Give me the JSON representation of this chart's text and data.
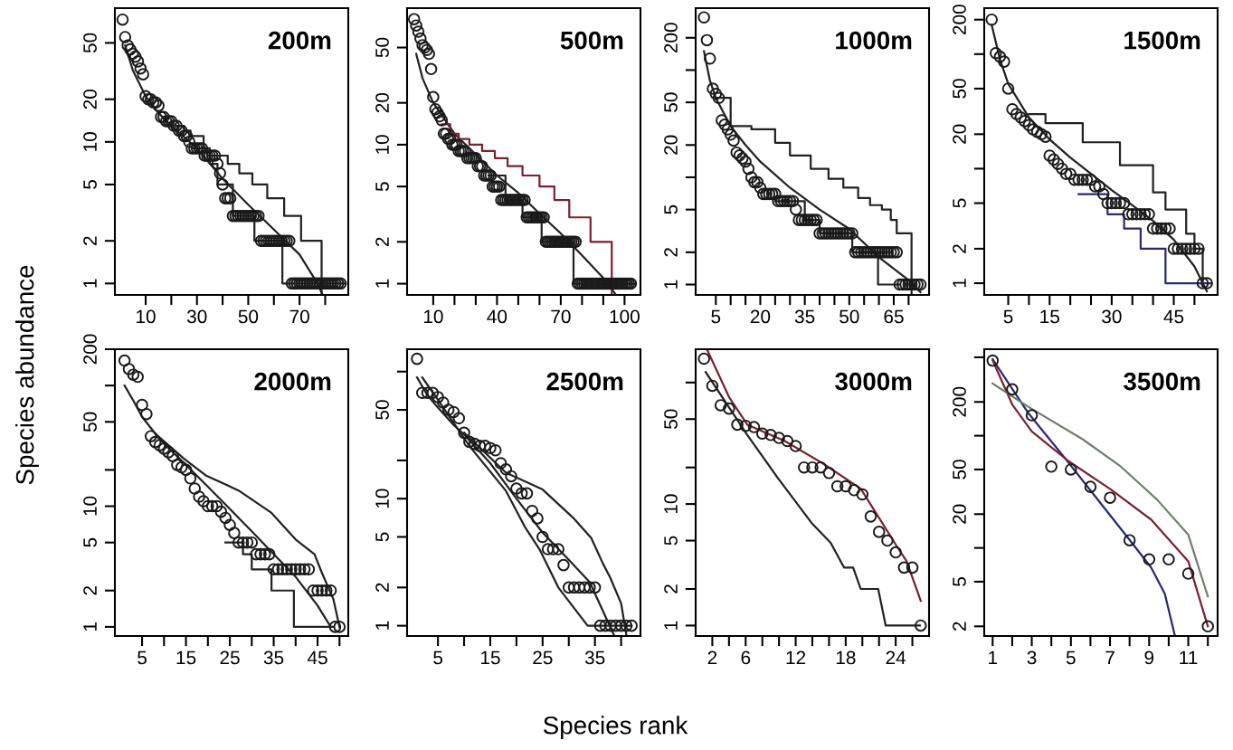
{
  "chart_data": [
    {
      "type": "scatter",
      "title": "200m",
      "ylabel": "Species abundance",
      "log": true,
      "xlim": [
        -2,
        89
      ],
      "ylim": [
        0.83,
        88
      ],
      "xticks": [
        10,
        {
          "value": 20,
          "label": null
        },
        30,
        {
          "value": 40,
          "label": null
        },
        50,
        {
          "value": 60,
          "label": null
        },
        70,
        {
          "value": 80,
          "label": null
        }
      ],
      "yticks": [
        1,
        2,
        5,
        10,
        20,
        50
      ],
      "x": [
        1,
        2,
        3,
        4,
        5,
        6,
        7,
        8,
        9,
        10,
        11,
        12,
        13,
        14,
        15,
        16,
        17,
        18,
        19,
        20,
        21,
        22,
        23,
        24,
        25,
        26,
        27,
        28,
        29,
        30,
        31,
        32,
        33,
        34,
        35,
        36,
        37,
        38,
        39,
        40,
        41,
        42,
        43,
        44,
        45,
        46,
        47,
        48,
        49,
        50,
        51,
        52,
        53,
        54,
        55,
        56,
        57,
        58,
        59,
        60,
        61,
        62,
        63,
        64,
        65,
        66,
        67,
        68,
        69,
        70,
        71,
        72,
        73,
        74,
        75,
        76,
        77,
        78,
        79,
        80,
        81,
        82,
        83,
        84,
        85,
        86
      ],
      "series": [
        {
          "marker": "circle",
          "color": "#1a1a1a",
          "values": [
            73,
            55,
            48,
            45,
            42,
            40,
            37,
            33,
            30,
            21,
            20,
            20,
            19,
            19,
            18,
            15,
            15,
            14,
            14,
            14,
            13,
            13,
            12,
            12,
            11,
            11,
            10,
            9,
            9,
            9,
            9,
            9,
            8,
            8,
            8,
            8,
            8,
            7,
            6,
            5,
            4,
            4,
            4,
            3,
            3,
            3,
            3,
            3,
            3,
            3,
            3,
            3,
            3,
            3,
            2,
            2,
            2,
            2,
            2,
            2,
            2,
            2,
            2,
            2,
            2,
            2,
            1,
            1,
            1,
            1,
            1,
            1,
            1,
            1,
            1,
            1,
            1,
            1,
            1,
            1,
            1,
            1,
            1,
            1,
            1,
            1
          ]
        },
        {
          "type": "line",
          "color": "#222222",
          "x": [
            2,
            5,
            10,
            15,
            20,
            30,
            40,
            50,
            60,
            70,
            77,
            79
          ],
          "values": [
            48,
            32,
            21,
            16,
            13,
            9,
            5.5,
            3.6,
            2.4,
            1.6,
            1.0,
            0.83
          ]
        },
        {
          "type": "step",
          "color": "#222222",
          "x": [
            22,
            25,
            27.5,
            32.6,
            34,
            42,
            46.5,
            51.6,
            57.4,
            64,
            70.6,
            78.6
          ],
          "values": [
            13,
            12,
            11,
            9,
            8,
            7,
            6,
            5,
            4,
            3,
            2,
            0.83
          ]
        },
        {
          "type": "step",
          "color": "#222222",
          "x": [
            28,
            35,
            38,
            44,
            52.4,
            63.3,
            88
          ],
          "values": [
            9,
            7,
            5,
            3,
            2,
            1,
            1
          ]
        }
      ]
    },
    {
      "type": "scatter",
      "title": "500m",
      "log": true,
      "xlim": [
        -2.3,
        107.5
      ],
      "ylim": [
        0.83,
        96
      ],
      "xticks": [
        10,
        {
          "value": 20,
          "label": null
        },
        {
          "value": 30,
          "label": null
        },
        40,
        {
          "value": 50,
          "label": null
        },
        {
          "value": 60,
          "label": null
        },
        70,
        {
          "value": 80,
          "label": null
        },
        {
          "value": 90,
          "label": null
        },
        100
      ],
      "yticks": [
        1,
        2,
        5,
        10,
        20,
        50
      ],
      "x": [
        1,
        2,
        3,
        4,
        5,
        6,
        7,
        8,
        9,
        10,
        11,
        12,
        13,
        14,
        15,
        16,
        17,
        18,
        19,
        20,
        21,
        22,
        23,
        24,
        25,
        26,
        27,
        28,
        29,
        30,
        31,
        32,
        33,
        34,
        35,
        36,
        37,
        38,
        39,
        40,
        41,
        42,
        43,
        44,
        45,
        46,
        47,
        48,
        49,
        50,
        51,
        52,
        53,
        54,
        55,
        56,
        57,
        58,
        59,
        60,
        61,
        62,
        63,
        64,
        65,
        66,
        67,
        68,
        69,
        70,
        71,
        72,
        73,
        74,
        75,
        76,
        77,
        78,
        79,
        80,
        81,
        82,
        83,
        84,
        85,
        86,
        87,
        88,
        89,
        90,
        91,
        92,
        93,
        94,
        95,
        96,
        97,
        98,
        99,
        100,
        101,
        102,
        103
      ],
      "series": [
        {
          "marker": "circle",
          "color": "#1a1a1a",
          "values": [
            80,
            72,
            65,
            58,
            52,
            50,
            48,
            45,
            35,
            22,
            18,
            17,
            16,
            15,
            12,
            12,
            11,
            11,
            10,
            10,
            10,
            9,
            9,
            9,
            9,
            8,
            8,
            8,
            8,
            8,
            7,
            7,
            7,
            6,
            6,
            6,
            6,
            5,
            5,
            5,
            5,
            4,
            4,
            4,
            4,
            4,
            4,
            4,
            4,
            4,
            4,
            4,
            4,
            3,
            3,
            3,
            3,
            3,
            3,
            3,
            3,
            3,
            2,
            2,
            2,
            2,
            2,
            2,
            2,
            2,
            2,
            2,
            2,
            2,
            2,
            2,
            2,
            1,
            1,
            1,
            1,
            1,
            1,
            1,
            1,
            1,
            1,
            1,
            1,
            1,
            1,
            1,
            1,
            1,
            1,
            1,
            1,
            1,
            1,
            1,
            1,
            1,
            1
          ]
        },
        {
          "type": "line",
          "color": "#222222",
          "x": [
            2,
            5,
            10,
            20,
            30,
            40,
            50,
            60,
            70,
            80,
            90,
            96
          ],
          "values": [
            45,
            30,
            20,
            12,
            8.5,
            6,
            4.5,
            3.2,
            2.3,
            1.6,
            1.1,
            0.83
          ]
        },
        {
          "type": "step",
          "color": "#7a2230",
          "x": [
            14,
            18,
            22,
            27,
            33,
            39,
            45,
            52,
            60,
            67,
            74,
            84,
            94
          ],
          "values": [
            14,
            12,
            11,
            10,
            9,
            8,
            7,
            6,
            5,
            4,
            3,
            2,
            0.83
          ]
        },
        {
          "type": "step",
          "color": "#222222",
          "x": [
            36,
            44,
            52,
            61,
            76,
            105
          ],
          "values": [
            6,
            4,
            3,
            2,
            1,
            1
          ]
        }
      ]
    },
    {
      "type": "scatter",
      "title": "1000m",
      "log": true,
      "xlim": [
        -1.8,
        76.9
      ],
      "ylim": [
        0.8,
        378
      ],
      "xticks": [
        5,
        {
          "value": 10,
          "label": null
        },
        {
          "value": 15,
          "label": null
        },
        20,
        {
          "value": 25,
          "label": null
        },
        {
          "value": 30,
          "label": null
        },
        35,
        {
          "value": 40,
          "label": null
        },
        {
          "value": 45,
          "label": null
        },
        50,
        {
          "value": 55,
          "label": null
        },
        {
          "value": 60,
          "label": null
        },
        65,
        {
          "value": 70,
          "label": null
        }
      ],
      "yticks": [
        1,
        2,
        5,
        {
          "value": 10,
          "label": null
        },
        20,
        50,
        {
          "value": 100,
          "label": null
        },
        200
      ],
      "x": [
        1,
        2,
        3,
        4,
        5,
        6,
        7,
        8,
        9,
        10,
        11,
        12,
        13,
        14,
        15,
        16,
        17,
        18,
        19,
        20,
        21,
        22,
        23,
        24,
        25,
        26,
        27,
        28,
        29,
        30,
        31,
        32,
        33,
        34,
        35,
        36,
        37,
        38,
        39,
        40,
        41,
        42,
        43,
        44,
        45,
        46,
        47,
        48,
        49,
        50,
        51,
        52,
        53,
        54,
        55,
        56,
        57,
        58,
        59,
        60,
        61,
        62,
        63,
        64,
        65,
        66,
        67,
        68,
        69,
        70,
        71,
        72,
        73,
        74
      ],
      "series": [
        {
          "marker": "circle",
          "color": "#1a1a1a",
          "values": [
            310,
            190,
            128,
            67,
            60,
            55,
            34,
            31,
            28,
            25,
            22,
            17,
            16,
            15,
            14,
            12,
            10,
            9,
            9,
            8,
            7,
            7,
            7,
            7,
            7,
            6,
            6,
            6,
            6,
            6,
            6,
            5,
            4,
            4,
            4,
            4,
            4,
            4,
            4,
            3,
            3,
            3,
            3,
            3,
            3,
            3,
            3,
            3,
            3,
            3,
            3,
            2,
            2,
            2,
            2,
            2,
            2,
            2,
            2,
            2,
            2,
            2,
            2,
            2,
            2,
            2,
            1,
            1,
            1,
            1,
            1,
            1,
            1,
            1
          ]
        },
        {
          "type": "line",
          "color": "#222222",
          "x": [
            1,
            3,
            5,
            10,
            15,
            20,
            30,
            40,
            50,
            60,
            70,
            74
          ],
          "values": [
            150,
            80,
            55,
            30,
            20,
            14,
            8,
            5,
            3.3,
            1.8,
            1.1,
            0.85
          ]
        },
        {
          "type": "step",
          "color": "#222222",
          "x": [
            5,
            10,
            17,
            25,
            30,
            37,
            43,
            48,
            53,
            57,
            61,
            64,
            66,
            71
          ],
          "values": [
            55,
            30,
            28,
            21,
            16,
            12,
            9.7,
            8,
            6.4,
            5.5,
            5,
            4,
            3,
            0.8
          ]
        },
        {
          "type": "step",
          "color": "#222222",
          "x": [
            25,
            35,
            40,
            51,
            59.7,
            67
          ],
          "values": [
            6,
            4,
            3,
            2,
            1,
            1
          ]
        }
      ]
    },
    {
      "type": "scatter",
      "title": "1500m",
      "log": true,
      "xlim": [
        -0.8,
        55.6
      ],
      "ylim": [
        0.79,
        252
      ],
      "xticks": [
        5,
        {
          "value": 10,
          "label": null
        },
        15,
        {
          "value": 20,
          "label": null
        },
        {
          "value": 25,
          "label": null
        },
        30,
        {
          "value": 35,
          "label": null
        },
        {
          "value": 40,
          "label": null
        },
        45,
        {
          "value": 50,
          "label": null
        }
      ],
      "yticks": [
        1,
        2,
        5,
        {
          "value": 10,
          "label": null
        },
        20,
        50,
        {
          "value": 100,
          "label": null
        },
        200
      ],
      "x": [
        1,
        2,
        3,
        4,
        5,
        6,
        7,
        8,
        9,
        10,
        11,
        12,
        13,
        14,
        15,
        16,
        17,
        18,
        19,
        20,
        21,
        22,
        23,
        24,
        25,
        26,
        27,
        28,
        29,
        30,
        31,
        32,
        33,
        34,
        35,
        36,
        37,
        38,
        39,
        40,
        41,
        42,
        43,
        44,
        45,
        46,
        47,
        48,
        49,
        50,
        51,
        52,
        53
      ],
      "series": [
        {
          "marker": "circle",
          "color": "#1a1a1a",
          "values": [
            200,
            102,
            95,
            86,
            50,
            33,
            30,
            28,
            26,
            24,
            22,
            21,
            20,
            19,
            13,
            12,
            11,
            10,
            9,
            9,
            8,
            8,
            8,
            8,
            8,
            7,
            7,
            6,
            5,
            5,
            5,
            5,
            5,
            4,
            4,
            4,
            4,
            4,
            4,
            3,
            3,
            3,
            3,
            3,
            2,
            2,
            2,
            2,
            2,
            2,
            2,
            1,
            1
          ]
        },
        {
          "type": "line",
          "color": "#222222",
          "x": [
            1,
            3,
            5,
            10,
            15,
            20,
            25,
            30,
            35,
            40,
            45,
            50,
            53
          ],
          "values": [
            180,
            90,
            55,
            28,
            18,
            12.5,
            9,
            6.5,
            4.8,
            3.5,
            2.4,
            1.4,
            0.85
          ]
        },
        {
          "type": "step",
          "color": "#222222",
          "x": [
            10,
            14,
            23,
            32,
            40,
            43,
            48,
            50,
            52
          ],
          "values": [
            30,
            25,
            17,
            10.7,
            6.2,
            4.4,
            2.7,
            2,
            1
          ]
        },
        {
          "type": "step",
          "color": "#2a2a70",
          "x": [
            22,
            29,
            33,
            37,
            43,
            54
          ],
          "values": [
            6,
            4,
            3,
            2,
            1,
            1
          ]
        }
      ]
    },
    {
      "type": "scatter",
      "title": "2000m",
      "log": true,
      "xlim": [
        -1.2,
        52
      ],
      "ylim": [
        0.84,
        200
      ],
      "xticks": [
        5,
        {
          "value": 10,
          "label": null
        },
        15,
        {
          "value": 20,
          "label": null
        },
        25,
        {
          "value": 30,
          "label": null
        },
        35,
        {
          "value": 40,
          "label": null
        },
        45,
        {
          "value": 50,
          "label": null
        }
      ],
      "yticks": [
        1,
        2,
        5,
        10,
        {
          "value": 20,
          "label": null
        },
        50,
        {
          "value": 100,
          "label": null
        },
        200
      ],
      "x": [
        1,
        2,
        3,
        4,
        5,
        6,
        7,
        8,
        9,
        10,
        11,
        12,
        13,
        14,
        15,
        16,
        17,
        18,
        19,
        20,
        21,
        22,
        23,
        24,
        25,
        26,
        27,
        28,
        29,
        30,
        31,
        32,
        33,
        34,
        35,
        36,
        37,
        38,
        39,
        40,
        41,
        42,
        43,
        44,
        45,
        46,
        47,
        48,
        49,
        50
      ],
      "series": [
        {
          "marker": "circle",
          "color": "#1a1a1a",
          "values": [
            161,
            137,
            123,
            118,
            69,
            58,
            38,
            34,
            32,
            30,
            28,
            26,
            22,
            21,
            20,
            17,
            14,
            12,
            11,
            10,
            10,
            10,
            9,
            8,
            7,
            6,
            5,
            5,
            5,
            5,
            4,
            4,
            4,
            4,
            3,
            3,
            3,
            3,
            3,
            3,
            3,
            3,
            3,
            2,
            2,
            2,
            2,
            2,
            1,
            1
          ]
        },
        {
          "type": "line",
          "color": "#222222",
          "x": [
            1,
            3,
            5,
            8,
            10,
            15,
            20,
            25,
            30,
            35,
            40,
            45,
            48
          ],
          "values": [
            100,
            75,
            55,
            40,
            33,
            22,
            14.5,
            9.5,
            6.2,
            4,
            2.6,
            1.5,
            1.0
          ]
        },
        {
          "type": "line",
          "color": "#222222",
          "x": [
            8,
            14.4,
            19.5,
            27,
            34.5,
            40,
            44.3,
            46,
            48.6,
            50
          ],
          "values": [
            40,
            25,
            18,
            13.5,
            8.8,
            5.3,
            4,
            2.8,
            1.7,
            1
          ]
        },
        {
          "type": "step",
          "color": "#222222",
          "x": [
            24,
            28,
            30,
            34.5,
            39.6,
            48.6
          ],
          "values": [
            5,
            4,
            3,
            2,
            1,
            1
          ]
        }
      ]
    },
    {
      "type": "scatter",
      "title": "2500m",
      "xlabel": "Species rank",
      "log": true,
      "xlim": [
        -0.9,
        43.7
      ],
      "ylim": [
        0.83,
        150
      ],
      "xticks": [
        5,
        {
          "value": 10,
          "label": null
        },
        15,
        {
          "value": 20,
          "label": null
        },
        25,
        {
          "value": 30,
          "label": null
        },
        35,
        {
          "value": 40,
          "label": null
        }
      ],
      "yticks": [
        1,
        2,
        5,
        10,
        {
          "value": 20,
          "label": null
        },
        50,
        {
          "value": 100,
          "label": null
        }
      ],
      "x": [
        1,
        2,
        3,
        4,
        5,
        6,
        7,
        8,
        9,
        10,
        11,
        12,
        13,
        14,
        15,
        16,
        17,
        18,
        19,
        20,
        21,
        22,
        23,
        24,
        25,
        26,
        27,
        28,
        29,
        30,
        31,
        32,
        33,
        34,
        35,
        36,
        37,
        38,
        39,
        40,
        41,
        42
      ],
      "series": [
        {
          "marker": "circle",
          "color": "#1a1a1a",
          "values": [
            126,
            68,
            68,
            68,
            63,
            57,
            50,
            48,
            43,
            33,
            28,
            27,
            26,
            26,
            25,
            24,
            19,
            17,
            15,
            12,
            11,
            11,
            8,
            7,
            5,
            4,
            4,
            4,
            3,
            2,
            2,
            2,
            2,
            2,
            2,
            1,
            1,
            1,
            1,
            1,
            1,
            1
          ]
        },
        {
          "type": "line",
          "color": "#222222",
          "x": [
            1,
            3,
            5,
            8,
            10,
            15,
            20,
            25,
            30,
            34,
            38.6
          ],
          "values": [
            90,
            65,
            52,
            38,
            32,
            19,
            10,
            5.4,
            3.3,
            2.2,
            0.85
          ]
        },
        {
          "type": "line",
          "color": "#222222",
          "x": [
            10,
            18,
            25,
            30.8,
            34.3,
            36.5,
            37.9,
            40,
            41
          ],
          "values": [
            33,
            16,
            11.8,
            7.1,
            4.9,
            3.1,
            2.4,
            1.5,
            0.85
          ]
        },
        {
          "type": "line",
          "color": "#222222",
          "x": [
            2,
            5,
            11,
            18,
            21.6,
            24.4,
            28,
            33.6,
            42
          ],
          "values": [
            90,
            60,
            26,
            11.5,
            6,
            4,
            2,
            1,
            1
          ]
        }
      ]
    },
    {
      "type": "scatter",
      "title": "3000m",
      "log": true,
      "xlim": [
        0,
        28
      ],
      "ylim": [
        0.82,
        188
      ],
      "xticks": [
        2,
        {
          "value": 4,
          "label": null
        },
        6,
        {
          "value": 8,
          "label": null
        },
        {
          "value": 10,
          "label": null
        },
        12,
        {
          "value": 14,
          "label": null
        },
        {
          "value": 16,
          "label": null
        },
        18,
        {
          "value": 20,
          "label": null
        },
        {
          "value": 22,
          "label": null
        },
        24,
        {
          "value": 26,
          "label": null
        }
      ],
      "yticks": [
        1,
        2,
        5,
        10,
        {
          "value": 20,
          "label": null
        },
        50,
        {
          "value": 100,
          "label": null
        }
      ],
      "x": [
        1,
        2,
        3,
        4,
        5,
        6,
        7,
        8,
        9,
        10,
        11,
        12,
        13,
        14,
        15,
        16,
        17,
        18,
        19,
        20,
        21,
        22,
        23,
        24,
        25,
        26,
        27
      ],
      "series": [
        {
          "marker": "circle",
          "color": "#1a1a1a",
          "values": [
            157,
            94,
            65,
            61,
            45,
            44,
            43,
            38,
            37,
            35,
            33,
            30,
            20,
            20,
            20,
            18,
            14,
            14,
            13,
            12,
            7.9,
            5.9,
            5,
            4,
            3,
            3,
            1
          ]
        },
        {
          "type": "line",
          "color": "#222222",
          "x": [
            1.2,
            6.2,
            9.8,
            13.9,
            16.2,
            17.8,
            18.9,
            19.8,
            21.9,
            22.8,
            26.9
          ],
          "values": [
            122,
            37,
            16.6,
            7,
            4.8,
            3,
            3,
            2,
            2,
            1,
            1
          ]
        },
        {
          "type": "line",
          "color": "#7a2230",
          "x": [
            1.4,
            4,
            6.2,
            10.7,
            15.3,
            19.8,
            22.1,
            24.4,
            25.3,
            27
          ],
          "values": [
            185,
            76,
            45,
            33,
            21.5,
            13.4,
            7.5,
            4.2,
            3.4,
            1.6
          ]
        }
      ]
    },
    {
      "type": "scatter",
      "title": "3500m",
      "log": true,
      "xlim": [
        0.57,
        12.5
      ],
      "ylim": [
        1.64,
        590
      ],
      "xticks": [
        1,
        {
          "value": 2,
          "label": null
        },
        3,
        {
          "value": 4,
          "label": null
        },
        5,
        {
          "value": 6,
          "label": null
        },
        7,
        {
          "value": 8,
          "label": null
        },
        9,
        {
          "value": 10,
          "label": null
        },
        11,
        {
          "value": 12,
          "label": null
        }
      ],
      "yticks": [
        2,
        5,
        {
          "value": 10,
          "label": null
        },
        20,
        50,
        {
          "value": 100,
          "label": null
        },
        200,
        {
          "value": 500,
          "label": null
        }
      ],
      "x": [
        1,
        2,
        3,
        4,
        5,
        6,
        7,
        8,
        9,
        10,
        11,
        12
      ],
      "series": [
        {
          "marker": "circle",
          "color": "#1a1a1a",
          "values": [
            467,
            259,
            152,
            53,
            50,
            35,
            28,
            11.7,
            7.9,
            7.9,
            5.9,
            2
          ]
        },
        {
          "type": "line",
          "color": "#2a2a70",
          "x": [
            1,
            2.8,
            4.7,
            6.6,
            8.1,
            9.1,
            9.8,
            10.3
          ],
          "values": [
            480,
            161,
            63,
            24,
            11.2,
            6.7,
            3.9,
            1.7
          ]
        },
        {
          "type": "line",
          "color": "#7a2230",
          "x": [
            1,
            2,
            3,
            4.9,
            7,
            9.1,
            11,
            12
          ],
          "values": [
            470,
            190,
            109,
            59,
            33.6,
            17.9,
            7.6,
            2
          ]
        },
        {
          "type": "line",
          "color": "#6f7f6f",
          "x": [
            1,
            2.8,
            5.6,
            7.5,
            9.4,
            11,
            12
          ],
          "values": [
            292,
            182,
            93,
            54,
            27,
            13.1,
            3.7
          ]
        }
      ]
    }
  ]
}
